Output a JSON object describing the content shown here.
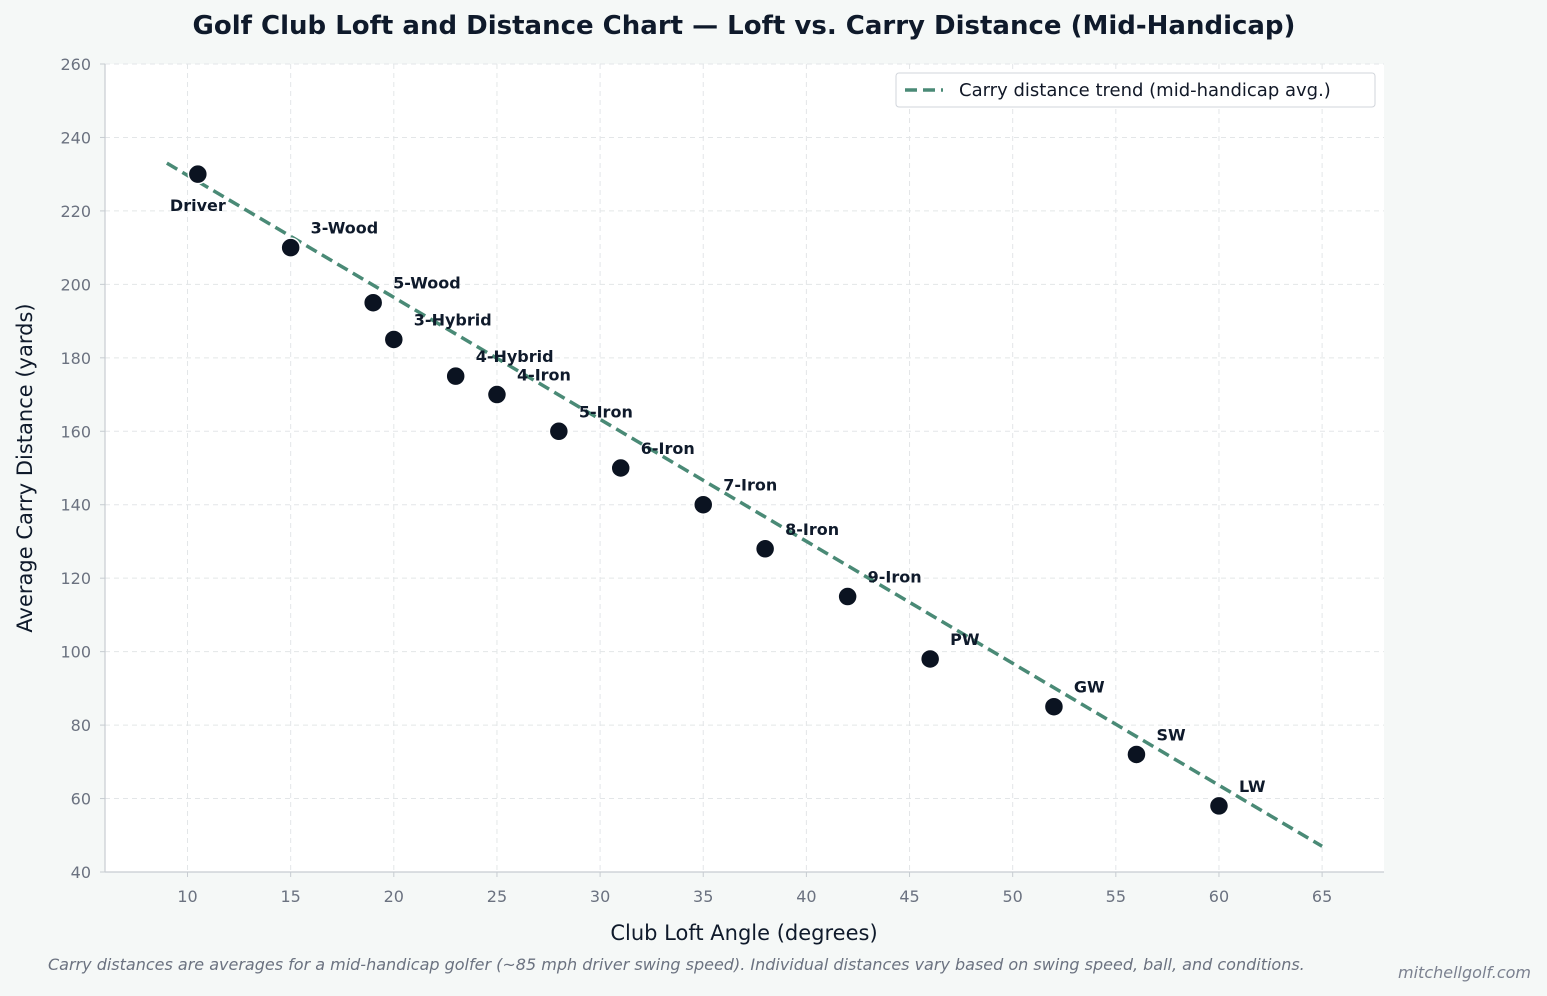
{
  "chart_data": {
    "type": "scatter",
    "title": "Golf Club Loft and Distance Chart — Loft vs. Carry Distance (Mid-Handicap)",
    "xlabel": "Club Loft Angle (degrees)",
    "ylabel": "Average Carry Distance (yards)",
    "xlim": [
      6,
      68
    ],
    "ylim": [
      40,
      260
    ],
    "xticks": [
      10,
      15,
      20,
      25,
      30,
      35,
      40,
      45,
      50,
      55,
      60,
      65
    ],
    "yticks": [
      40,
      60,
      80,
      100,
      120,
      140,
      160,
      180,
      200,
      220,
      240,
      260
    ],
    "grid": true,
    "legend_position": "top-right",
    "points": [
      {
        "label": "Driver",
        "x": 10.5,
        "y": 230
      },
      {
        "label": "3-Wood",
        "x": 15,
        "y": 210
      },
      {
        "label": "5-Wood",
        "x": 19,
        "y": 195
      },
      {
        "label": "3-Hybrid",
        "x": 20,
        "y": 185
      },
      {
        "label": "4-Hybrid",
        "x": 23,
        "y": 175
      },
      {
        "label": "4-Iron",
        "x": 25,
        "y": 170
      },
      {
        "label": "5-Iron",
        "x": 28,
        "y": 160
      },
      {
        "label": "6-Iron",
        "x": 31,
        "y": 150
      },
      {
        "label": "7-Iron",
        "x": 35,
        "y": 140
      },
      {
        "label": "8-Iron",
        "x": 38,
        "y": 128
      },
      {
        "label": "9-Iron",
        "x": 42,
        "y": 115
      },
      {
        "label": "PW",
        "x": 46,
        "y": 98
      },
      {
        "label": "GW",
        "x": 52,
        "y": 85
      },
      {
        "label": "SW",
        "x": 56,
        "y": 72
      },
      {
        "label": "LW",
        "x": 60,
        "y": 58
      }
    ],
    "trend": {
      "name": "Carry distance trend (mid-handicap avg.)",
      "x": [
        9,
        65
      ],
      "y": [
        233,
        47
      ]
    },
    "colors": {
      "point": "#0b1321",
      "trend": "#4a8a76",
      "grid": "#e3e6e8",
      "axis": "#c7ccd1"
    }
  },
  "footnote": "Carry distances are averages for a mid-handicap golfer (~85 mph driver swing speed). Individual distances vary based on swing speed, ball, and conditions.",
  "watermark": "mitchellgolf.com"
}
